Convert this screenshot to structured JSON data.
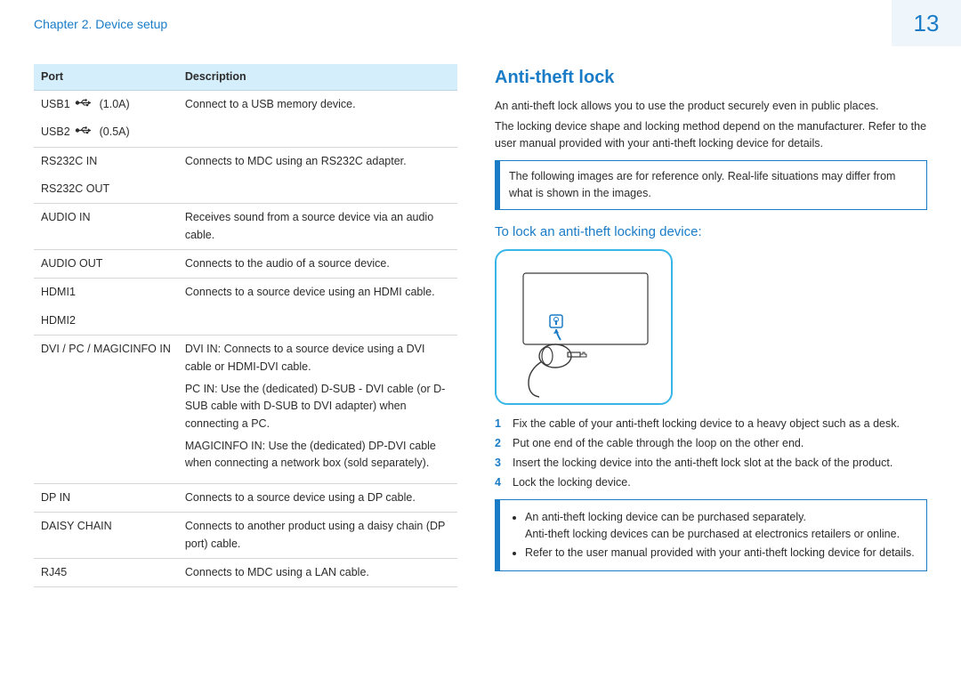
{
  "header": {
    "chapter": "Chapter 2. Device setup",
    "page_number": "13"
  },
  "ports_table": {
    "headers": {
      "port": "Port",
      "desc": "Description"
    },
    "rows": [
      {
        "port": "USB1",
        "suffix": "(1.0A)",
        "usb_icon": true,
        "desc": "Connect to a USB memory device."
      },
      {
        "port": "USB2",
        "suffix": "(0.5A)",
        "usb_icon": true,
        "desc": ""
      },
      {
        "port": "RS232C IN",
        "desc": "Connects to MDC using an RS232C adapter."
      },
      {
        "port": "RS232C OUT",
        "desc": ""
      },
      {
        "port": "AUDIO IN",
        "desc": "Receives sound from a source device via an audio cable."
      },
      {
        "port": "AUDIO OUT",
        "desc": "Connects to the audio of a source device."
      },
      {
        "port": "HDMI1",
        "desc": "Connects to a source device using an HDMI cable."
      },
      {
        "port": "HDMI2",
        "desc": ""
      },
      {
        "port": "DVI / PC / MAGICINFO IN",
        "desc": "DVI IN: Connects to a source device using a DVI cable or HDMI-DVI cable.\nPC IN: Use the (dedicated) D-SUB - DVI cable (or D-SUB cable with D-SUB to DVI adapter) when connecting a PC.\nMAGICINFO IN: Use the (dedicated) DP-DVI cable when connecting a network box (sold separately)."
      },
      {
        "port": "DP IN",
        "desc": "Connects to a source device using a DP cable."
      },
      {
        "port": "DAISY CHAIN",
        "desc": "Connects to another product using a daisy chain (DP port) cable."
      },
      {
        "port": "RJ45",
        "desc": "Connects to MDC using a LAN cable."
      }
    ]
  },
  "anti_theft": {
    "title": "Anti-theft lock",
    "intro1": "An anti-theft lock allows you to use the product securely even in public places.",
    "intro2": "The locking device shape and locking method depend on the manufacturer. Refer to the user manual provided with your anti-theft locking device for details.",
    "note1": "The following images are for reference only. Real-life situations may differ from what is shown in the images.",
    "subheading": "To lock an anti-theft locking device:",
    "steps": [
      "Fix the cable of your anti-theft locking device to a heavy object such as a desk.",
      "Put one end of the cable through the loop on the other end.",
      "Insert the locking device into the anti-theft lock slot at the back of the product.",
      "Lock the locking device."
    ],
    "note2_items": [
      "An anti-theft locking device can be purchased separately.\nAnti-theft locking devices can be purchased at electronics retailers or online.",
      "Refer to the user manual provided with your anti-theft locking device for details."
    ]
  },
  "colors": {
    "accent": "#1a7cc7",
    "light_accent": "#38b6e8",
    "table_header_bg": "#d5eefb",
    "page_bg": "#eef6fb",
    "border_gray": "#d6d6d6"
  }
}
